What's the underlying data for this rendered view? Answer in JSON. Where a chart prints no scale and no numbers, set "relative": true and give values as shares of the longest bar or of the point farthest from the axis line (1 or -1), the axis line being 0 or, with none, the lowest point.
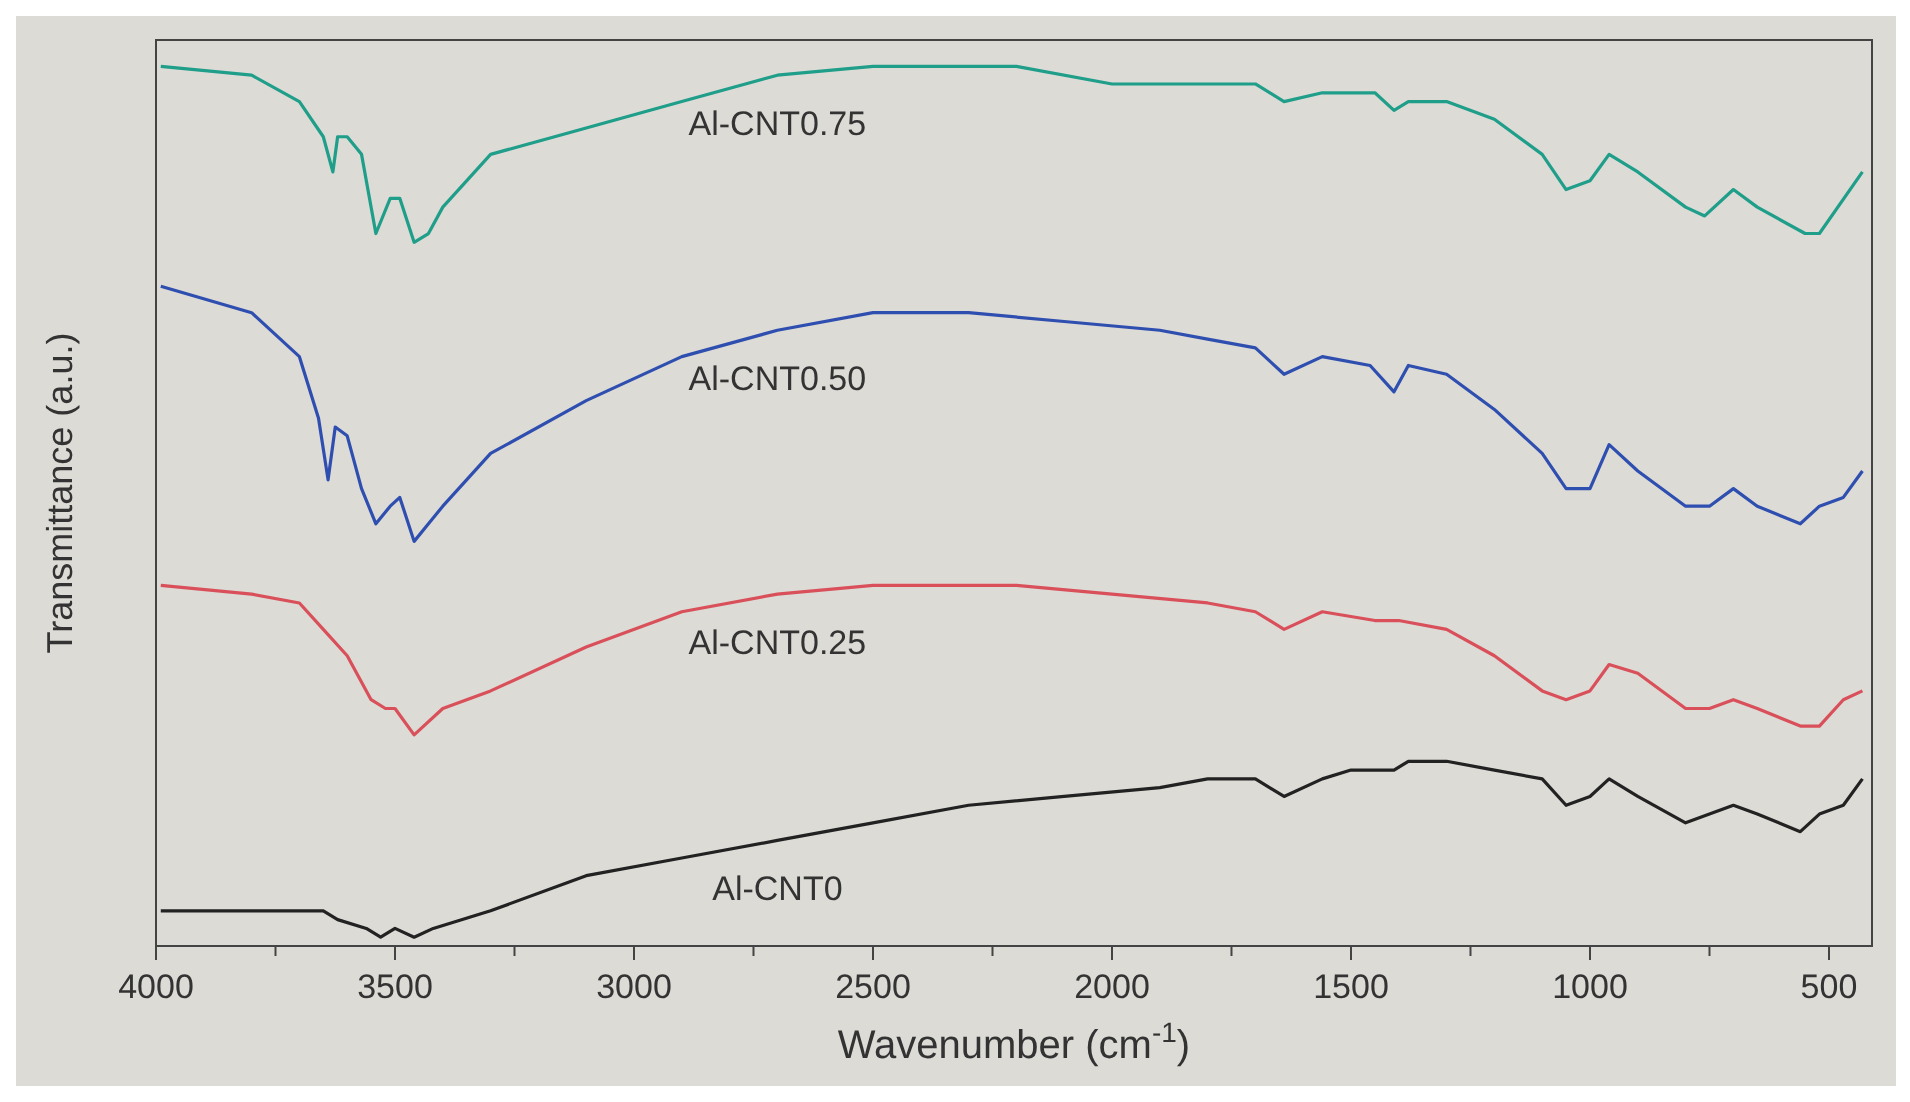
{
  "chart_data": {
    "type": "line",
    "relative": true,
    "xlabel": "Wavenumber (cm$^{-1}$)",
    "ylabel": "Transmittance (a.u.)",
    "xlim": [
      4000,
      410
    ],
    "xticks": [
      4000,
      {
        "value": 3750,
        "label": null
      },
      3500,
      {
        "value": 3250,
        "label": null
      },
      3000,
      {
        "value": 2750,
        "label": null
      },
      2500,
      {
        "value": 2250,
        "label": null
      },
      2000,
      {
        "value": 1750,
        "label": null
      },
      1500,
      {
        "value": 1250,
        "label": null
      },
      1000,
      {
        "value": 750,
        "label": null
      },
      500
    ],
    "grid": false,
    "marker": "none",
    "line_style": "solid",
    "series": [
      {
        "name": "Al-CNT0.75",
        "color": "#1f9e8a",
        "x": [
          3990,
          3800,
          3700,
          3650,
          3630,
          3620,
          3600,
          3570,
          3540,
          3510,
          3490,
          3460,
          3430,
          3400,
          3300,
          3100,
          2900,
          2700,
          2500,
          2200,
          2000,
          1800,
          1700,
          1640,
          1560,
          1450,
          1410,
          1380,
          1300,
          1200,
          1100,
          1050,
          1000,
          960,
          900,
          800,
          760,
          700,
          650,
          550,
          520,
          430
        ],
        "values": [
          1.0,
          0.99,
          0.96,
          0.92,
          0.88,
          0.92,
          0.92,
          0.9,
          0.81,
          0.85,
          0.85,
          0.8,
          0.81,
          0.84,
          0.9,
          0.93,
          0.96,
          0.99,
          1.0,
          1.0,
          0.98,
          0.98,
          0.98,
          0.96,
          0.97,
          0.97,
          0.95,
          0.96,
          0.96,
          0.94,
          0.9,
          0.86,
          0.87,
          0.9,
          0.88,
          0.84,
          0.83,
          0.86,
          0.84,
          0.81,
          0.81,
          0.88
        ]
      },
      {
        "name": "Al-CNT0.50",
        "color": "#2f4fb0",
        "x": [
          3990,
          3800,
          3700,
          3660,
          3640,
          3625,
          3600,
          3570,
          3540,
          3510,
          3490,
          3460,
          3430,
          3400,
          3300,
          3100,
          2900,
          2700,
          2500,
          2300,
          2100,
          1900,
          1800,
          1700,
          1640,
          1560,
          1460,
          1410,
          1380,
          1300,
          1200,
          1100,
          1050,
          1000,
          960,
          900,
          800,
          750,
          700,
          650,
          560,
          520,
          470,
          430
        ],
        "values": [
          0.75,
          0.72,
          0.67,
          0.6,
          0.53,
          0.59,
          0.58,
          0.52,
          0.48,
          0.5,
          0.51,
          0.46,
          0.48,
          0.5,
          0.56,
          0.62,
          0.67,
          0.7,
          0.72,
          0.72,
          0.71,
          0.7,
          0.69,
          0.68,
          0.65,
          0.67,
          0.66,
          0.63,
          0.66,
          0.65,
          0.61,
          0.56,
          0.52,
          0.52,
          0.57,
          0.54,
          0.5,
          0.5,
          0.52,
          0.5,
          0.48,
          0.5,
          0.51,
          0.54
        ]
      },
      {
        "name": "Al-CNT0.25",
        "color": "#d9505a",
        "x": [
          3990,
          3800,
          3700,
          3650,
          3600,
          3550,
          3520,
          3500,
          3460,
          3400,
          3300,
          3100,
          2900,
          2700,
          2500,
          2200,
          2000,
          1800,
          1700,
          1640,
          1560,
          1450,
          1400,
          1300,
          1200,
          1100,
          1050,
          1000,
          960,
          900,
          800,
          750,
          700,
          650,
          560,
          520,
          470,
          430
        ],
        "values": [
          0.41,
          0.4,
          0.39,
          0.36,
          0.33,
          0.28,
          0.27,
          0.27,
          0.24,
          0.27,
          0.29,
          0.34,
          0.38,
          0.4,
          0.41,
          0.41,
          0.4,
          0.39,
          0.38,
          0.36,
          0.38,
          0.37,
          0.37,
          0.36,
          0.33,
          0.29,
          0.28,
          0.29,
          0.32,
          0.31,
          0.27,
          0.27,
          0.28,
          0.27,
          0.25,
          0.25,
          0.28,
          0.29
        ]
      },
      {
        "name": "Al-CNT0",
        "color": "#222222",
        "x": [
          3990,
          3800,
          3700,
          3650,
          3620,
          3560,
          3530,
          3500,
          3460,
          3420,
          3300,
          3100,
          2900,
          2700,
          2500,
          2300,
          2100,
          1900,
          1800,
          1700,
          1640,
          1560,
          1500,
          1410,
          1380,
          1300,
          1200,
          1100,
          1050,
          1000,
          960,
          900,
          800,
          750,
          700,
          650,
          560,
          520,
          470,
          430
        ],
        "values": [
          0.04,
          0.04,
          0.04,
          0.04,
          0.03,
          0.02,
          0.01,
          0.02,
          0.01,
          0.02,
          0.04,
          0.08,
          0.1,
          0.12,
          0.14,
          0.16,
          0.17,
          0.18,
          0.19,
          0.19,
          0.17,
          0.19,
          0.2,
          0.2,
          0.21,
          0.21,
          0.2,
          0.19,
          0.16,
          0.17,
          0.19,
          0.17,
          0.14,
          0.15,
          0.16,
          0.15,
          0.13,
          0.15,
          0.16,
          0.19
        ]
      }
    ]
  }
}
